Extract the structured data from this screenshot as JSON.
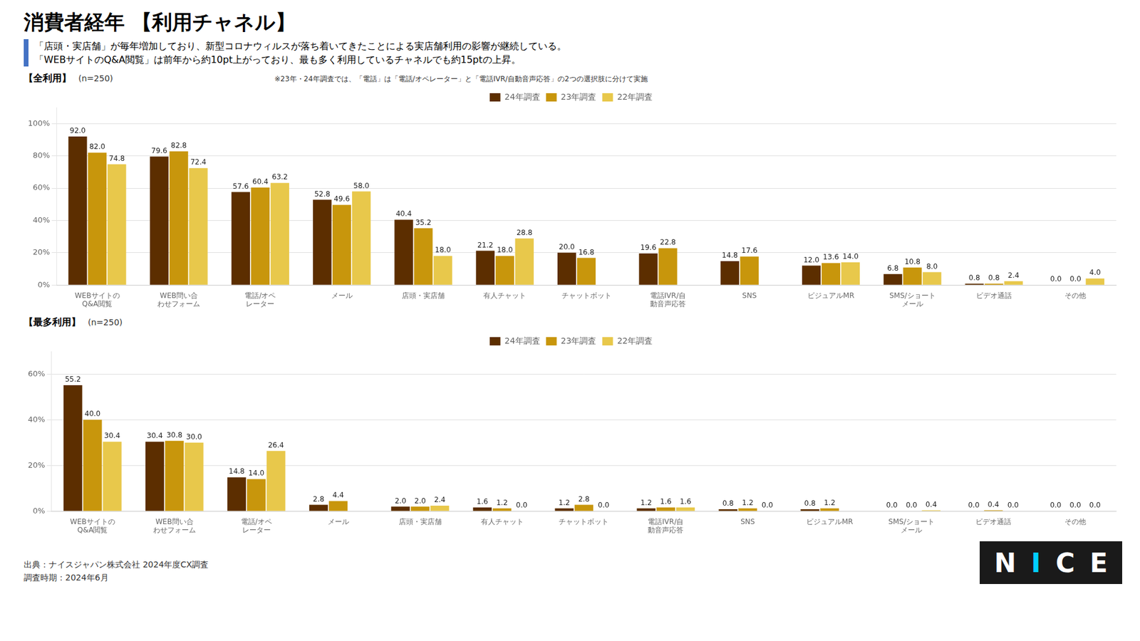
{
  "title": "消費者経年 【利用チャネル】",
  "subtitle": [
    "「店頭・実店舗」が毎年増加しており、新型コロナウィルスが落ち着いてきたことによる実店舗利用の影響が継続している。",
    "「WEBサイトのQ&A閲覧」は前年から約10pt上がっており、最も多く利用しているチャネルでも約15ptの上昇。"
  ],
  "footer": [
    "出典：ナイスジャパン株式会社 2024年度CX調査",
    "調査時期：2024年6月"
  ],
  "logo": "NICE",
  "chart_data": [
    {
      "type": "bar",
      "title": "【全利用】",
      "subtitle": "(n=250)",
      "annotation": "※23年・24年調査では、「電話」は「電話/オペレーター」と「電話IVR/自動音声応答」の2つの選択肢に分けて実施",
      "categories": [
        "WEBサイトの\nQ&A閲覧",
        "WEB問い合\nわせフォーム",
        "電話/オペ\nレーター",
        "メール",
        "店頭・実店舗",
        "有人チャット",
        "チャットボット",
        "電話IVR/自\n動音声応答",
        "SNS",
        "ビジュアルMR",
        "SMS/ショート\nメール",
        "ビデオ通話",
        "その他"
      ],
      "series": [
        {
          "name": "24年調査",
          "color": "#5C2E00",
          "values": [
            92.0,
            79.6,
            57.6,
            52.8,
            40.4,
            21.2,
            20.0,
            19.6,
            14.8,
            12.0,
            6.8,
            0.8,
            0.0
          ],
          "value_labels": [
            "92.0",
            "79.6",
            "57.6",
            "52.8",
            "40.4",
            "21.2",
            "20.0",
            "19.6",
            "14.8",
            "12.0",
            "6.8",
            "0.8",
            "0.0"
          ]
        },
        {
          "name": "23年調査",
          "color": "#C8960C",
          "values": [
            82.0,
            82.8,
            60.4,
            49.6,
            35.2,
            18.0,
            16.8,
            22.8,
            17.6,
            13.6,
            10.8,
            0.8,
            0.0
          ],
          "value_labels": [
            "82.0",
            "82.8",
            "60.4",
            "49.6",
            "35.2",
            "18.0",
            "16.8",
            "22.8",
            "17.6",
            "13.6",
            "10.8",
            "0.8",
            "0.0"
          ]
        },
        {
          "name": "22年調査",
          "color": "#E8C84B",
          "values": [
            74.8,
            72.4,
            63.2,
            58.0,
            18.0,
            28.8,
            null,
            null,
            null,
            14.0,
            8.0,
            2.4,
            4.0
          ],
          "value_labels": [
            "74.8",
            "72.4",
            "63.2",
            "58.0",
            "18.0",
            "28.8",
            null,
            null,
            null,
            "14.0",
            "8.0",
            "2.4",
            "4.0"
          ]
        }
      ],
      "ylim": [
        0,
        110
      ],
      "yticks": [
        {
          "value": 0,
          "label": "0%"
        },
        {
          "value": 20,
          "label": "20%"
        },
        {
          "value": 40,
          "label": "40%"
        },
        {
          "value": 60,
          "label": "60%"
        },
        {
          "value": 80,
          "label": "80%"
        },
        {
          "value": 100,
          "label": "100%"
        }
      ],
      "grid": true,
      "legend": "top",
      "data_labels": true
    },
    {
      "type": "bar",
      "title": "【最多利用】",
      "subtitle": "(n=250)",
      "categories": [
        "WEBサイトの\nQ&A閲覧",
        "WEB問い合\nわせフォーム",
        "電話/オペ\nレーター",
        "メール",
        "店頭・実店舗",
        "有人チャット",
        "チャットボット",
        "電話IVR/自\n動音声応答",
        "SNS",
        "ビジュアルMR",
        "SMS/ショート\nメール",
        "ビデオ通話",
        "その他"
      ],
      "series": [
        {
          "name": "24年調査",
          "color": "#5C2E00",
          "values": [
            55.2,
            30.4,
            14.8,
            2.8,
            2.0,
            1.6,
            1.2,
            1.2,
            0.8,
            0.8,
            0.0,
            0.0,
            0.0
          ],
          "value_labels": [
            "55.2",
            "30.4",
            "14.8",
            "2.8",
            "2.0",
            "1.6",
            "1.2",
            "1.2",
            "0.8",
            "0.8",
            "0.0",
            "0.0",
            "0.0"
          ]
        },
        {
          "name": "23年調査",
          "color": "#C8960C",
          "values": [
            40.0,
            30.8,
            14.0,
            4.4,
            2.0,
            1.2,
            2.8,
            1.6,
            1.2,
            1.2,
            0.0,
            0.4,
            0.0
          ],
          "value_labels": [
            "40.0",
            "30.8",
            "14.0",
            "4.4",
            "2.0",
            "1.2",
            "2.8",
            "1.6",
            "1.2",
            "1.2",
            "0.0",
            "0.4",
            "0.0"
          ]
        },
        {
          "name": "22年調査",
          "color": "#E8C84B",
          "values": [
            30.4,
            30.0,
            26.4,
            null,
            2.4,
            0.0,
            0.0,
            1.6,
            0.0,
            null,
            0.4,
            0.0,
            0.0
          ],
          "value_labels": [
            "30.4",
            "30.0",
            "26.4",
            null,
            "2.4",
            "0.0",
            "0.0",
            "1.6",
            "0.0",
            null,
            "0.4",
            "0.0",
            "0.0"
          ]
        }
      ],
      "ylim": [
        0,
        70
      ],
      "yticks": [
        {
          "value": 0,
          "label": "0%"
        },
        {
          "value": 20,
          "label": "20%"
        },
        {
          "value": 40,
          "label": "40%"
        },
        {
          "value": 60,
          "label": "60%"
        }
      ],
      "grid": true,
      "legend": "top",
      "data_labels": true
    }
  ]
}
